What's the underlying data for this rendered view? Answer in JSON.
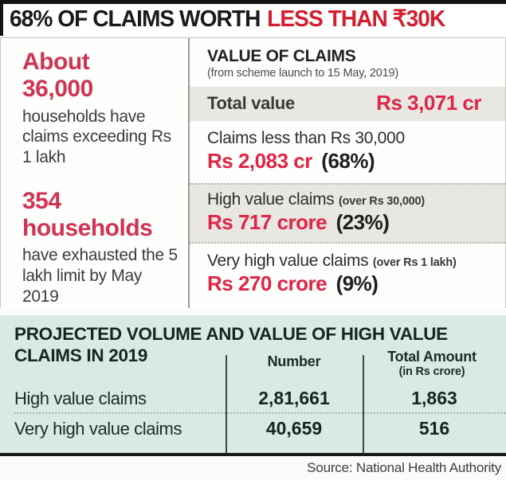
{
  "title": {
    "prefix": "68% OF CLAIMS WORTH",
    "highlight": "LESS THAN ₹30K"
  },
  "left_column": {
    "stat1": {
      "big_line1": "About",
      "big_line2": "36,000",
      "desc": "households have claims exceeding Rs 1 lakh"
    },
    "stat2": {
      "big_line1": "354",
      "big_line2": "households",
      "desc": "have exhausted the 5 lakh limit by May 2019"
    }
  },
  "value_of_claims": {
    "heading": "VALUE OF CLAIMS",
    "subheading": "(from scheme launch to 15 May, 2019)",
    "total": {
      "label": "Total value",
      "value": "Rs 3,071 cr"
    },
    "items": [
      {
        "label": "Claims less than Rs 30,000",
        "note": "",
        "value": "Rs 2,083 cr",
        "share": "(68%)"
      },
      {
        "label": "High value claims",
        "note": "(over Rs 30,000)",
        "value": "Rs 717 crore",
        "share": "(23%)"
      },
      {
        "label": "Very high value claims",
        "note": "(over Rs 1 lakh)",
        "value": "Rs 270 crore",
        "share": "(9%)"
      }
    ]
  },
  "projected_table": {
    "heading_line1": "PROJECTED VOLUME AND VALUE OF HIGH VALUE",
    "heading_line2": "CLAIMS IN 2019",
    "col_number": "Number",
    "col_amount_line1": "Total Amount",
    "col_amount_line2": "(in Rs crore)",
    "rows": [
      {
        "label": "High value claims",
        "number": "2,81,661",
        "amount": "1,863"
      },
      {
        "label": "Very high value claims",
        "number": "40,659",
        "amount": "516"
      }
    ]
  },
  "source": "Source: National Health Authority",
  "colors": {
    "title_red": "#d11f30",
    "stat_red": "#cf3452",
    "value_red": "#e02446",
    "shaded_gray": "#e9e7e2",
    "teal_bg": "#d9eae5"
  }
}
